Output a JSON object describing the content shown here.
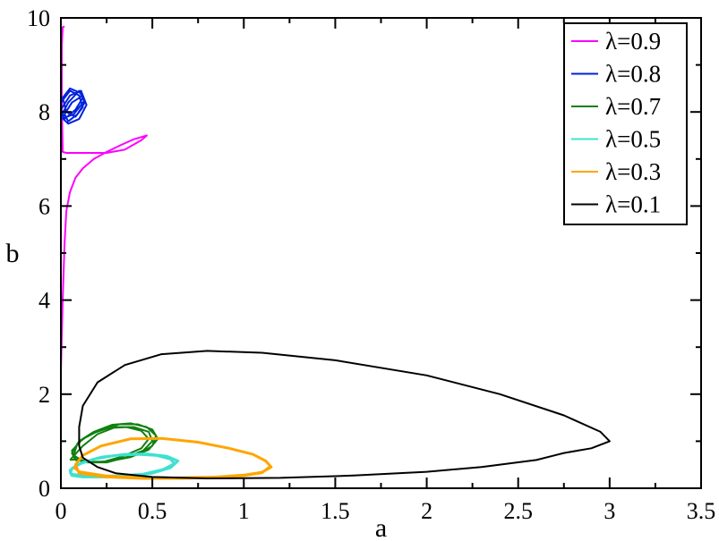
{
  "chart_data": {
    "type": "line",
    "title": "",
    "xlabel": "a",
    "ylabel": "b",
    "xlim": [
      0,
      3.5
    ],
    "ylim": [
      0,
      10
    ],
    "xticks": [
      0,
      0.5,
      1,
      1.5,
      2,
      2.5,
      3,
      3.5
    ],
    "xtick_labels": [
      "0",
      "0.5",
      "1",
      "1.5",
      "2",
      "2.5",
      "3",
      "3.5"
    ],
    "yticks": [
      0,
      2,
      4,
      6,
      8,
      10
    ],
    "ytick_labels": [
      "0",
      "2",
      "4",
      "6",
      "8",
      "10"
    ],
    "grid": false,
    "legend_position": "top-right",
    "series": [
      {
        "name": "λ=0.9",
        "color": "#ff00ff",
        "x": [
          0.0,
          0.0,
          0.01,
          0.02,
          0.03,
          0.05,
          0.08,
          0.12,
          0.18,
          0.25,
          0.33,
          0.4,
          0.47,
          0.44,
          0.35,
          0.25,
          0.15,
          0.08,
          0.03,
          0.01,
          0.005,
          0.005,
          0.01,
          0.02
        ],
        "y": [
          0.9,
          2.5,
          4.0,
          5.2,
          5.9,
          6.3,
          6.6,
          6.8,
          7.0,
          7.15,
          7.3,
          7.42,
          7.5,
          7.4,
          7.2,
          7.13,
          7.13,
          7.13,
          7.13,
          7.15,
          8.2,
          9.4,
          9.8,
          9.82
        ]
      },
      {
        "name": "λ=0.8",
        "color": "#0022dd",
        "x": [
          0.0,
          0.05,
          0.1,
          0.12,
          0.08,
          0.03,
          0.01,
          0.05,
          0.11,
          0.13,
          0.09,
          0.04,
          0.02,
          0.06,
          0.12,
          0.14,
          0.1,
          0.04,
          0.0,
          0.04,
          0.1,
          0.12,
          0.08,
          0.02,
          0.0,
          0.05,
          0.11,
          0.13,
          0.07,
          0.02
        ],
        "y": [
          8.2,
          8.45,
          8.35,
          8.1,
          7.9,
          8.0,
          8.3,
          8.5,
          8.4,
          8.2,
          7.95,
          7.8,
          7.95,
          8.2,
          8.35,
          8.15,
          7.85,
          7.75,
          7.9,
          8.2,
          8.45,
          8.3,
          8.05,
          7.85,
          8.05,
          8.35,
          8.45,
          8.25,
          7.95,
          7.88
        ]
      },
      {
        "name": "λ=0.7",
        "color": "#108010",
        "x": [
          0.05,
          0.12,
          0.2,
          0.3,
          0.4,
          0.48,
          0.5,
          0.45,
          0.35,
          0.25,
          0.15,
          0.08,
          0.06,
          0.1,
          0.18,
          0.28,
          0.38,
          0.47,
          0.52,
          0.5,
          0.42,
          0.3,
          0.2,
          0.12,
          0.07,
          0.09,
          0.16,
          0.26,
          0.36,
          0.44,
          0.48,
          0.44,
          0.34,
          0.24,
          0.14,
          0.08,
          0.06,
          0.12,
          0.22,
          0.32,
          0.42,
          0.5,
          0.53,
          0.48,
          0.38,
          0.26,
          0.16,
          0.09,
          0.05
        ],
        "y": [
          0.6,
          0.9,
          1.15,
          1.3,
          1.3,
          1.2,
          1.0,
          0.8,
          0.65,
          0.55,
          0.55,
          0.6,
          0.75,
          1.0,
          1.2,
          1.35,
          1.38,
          1.3,
          1.12,
          0.9,
          0.72,
          0.6,
          0.55,
          0.58,
          0.7,
          0.95,
          1.15,
          1.28,
          1.3,
          1.22,
          1.05,
          0.85,
          0.68,
          0.57,
          0.55,
          0.62,
          0.8,
          1.05,
          1.25,
          1.36,
          1.36,
          1.25,
          1.05,
          0.82,
          0.66,
          0.57,
          0.56,
          0.62,
          0.6
        ]
      },
      {
        "name": "λ=0.5",
        "color": "#40e0d0",
        "x": [
          0.05,
          0.1,
          0.2,
          0.32,
          0.45,
          0.56,
          0.62,
          0.6,
          0.52,
          0.42,
          0.3,
          0.18,
          0.09,
          0.05,
          0.06,
          0.12,
          0.25,
          0.38,
          0.5,
          0.6,
          0.64,
          0.58,
          0.47,
          0.35,
          0.22,
          0.12,
          0.06,
          0.05
        ],
        "y": [
          0.3,
          0.28,
          0.26,
          0.26,
          0.3,
          0.4,
          0.52,
          0.62,
          0.7,
          0.72,
          0.7,
          0.62,
          0.5,
          0.38,
          0.27,
          0.24,
          0.24,
          0.26,
          0.32,
          0.44,
          0.58,
          0.68,
          0.73,
          0.72,
          0.66,
          0.55,
          0.42,
          0.3
        ]
      },
      {
        "name": "λ=0.3",
        "color": "#ffa500",
        "x": [
          0.07,
          0.1,
          0.25,
          0.45,
          0.65,
          0.85,
          1.0,
          1.1,
          1.15,
          1.12,
          1.05,
          0.92,
          0.75,
          0.55,
          0.38,
          0.22,
          0.12,
          0.08,
          0.1,
          0.25,
          0.45,
          0.65,
          0.85,
          1.0,
          1.1,
          1.14
        ],
        "y": [
          0.45,
          0.35,
          0.26,
          0.22,
          0.22,
          0.24,
          0.28,
          0.34,
          0.45,
          0.58,
          0.72,
          0.85,
          0.98,
          1.06,
          1.05,
          0.9,
          0.7,
          0.5,
          0.32,
          0.24,
          0.21,
          0.21,
          0.23,
          0.27,
          0.33,
          0.45
        ]
      },
      {
        "name": "λ=0.1",
        "color": "#000000",
        "x": [
          0.1,
          0.1,
          0.12,
          0.2,
          0.35,
          0.55,
          0.8,
          1.1,
          1.5,
          2.0,
          2.4,
          2.75,
          2.95,
          3.0,
          2.9,
          2.75,
          2.7,
          2.6,
          2.3,
          2.0,
          1.6,
          1.2,
          0.8,
          0.5,
          0.3,
          0.2,
          0.12,
          0.1
        ],
        "y": [
          0.9,
          1.3,
          1.75,
          2.25,
          2.62,
          2.85,
          2.92,
          2.88,
          2.72,
          2.4,
          2.0,
          1.55,
          1.2,
          1.0,
          0.85,
          0.75,
          0.7,
          0.6,
          0.45,
          0.35,
          0.27,
          0.22,
          0.21,
          0.24,
          0.32,
          0.45,
          0.65,
          0.9
        ]
      }
    ]
  }
}
